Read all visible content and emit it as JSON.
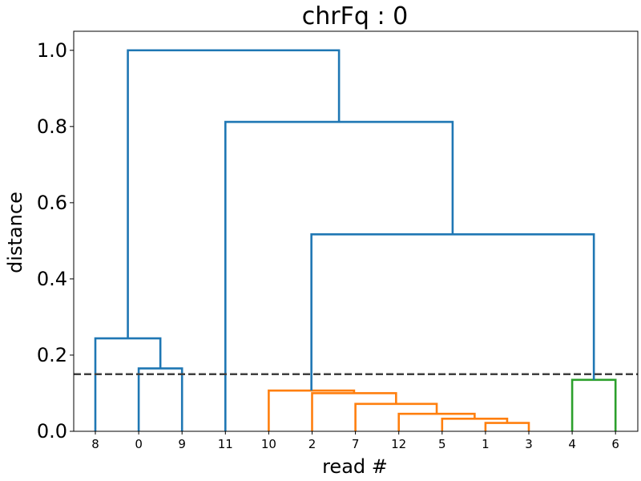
{
  "chart_data": {
    "type": "dendrogram",
    "title": "chrFq : 0",
    "xlabel": "read #",
    "ylabel": "distance",
    "ylim": [
      0,
      1.05
    ],
    "yticks": [
      "0.0",
      "0.2",
      "0.4",
      "0.6",
      "0.8",
      "1.0"
    ],
    "leaves": [
      "8",
      "0",
      "9",
      "11",
      "10",
      "2",
      "7",
      "12",
      "5",
      "1",
      "3",
      "4",
      "6"
    ],
    "threshold": 0.15,
    "threshold_color": "#404040",
    "colors": {
      "above": "#1f77b4",
      "cluster1": "#ff7f0e",
      "cluster2": "#2ca02c"
    },
    "links": [
      {
        "left": [
          5.5,
          0.0
        ],
        "right": [
          6.5,
          0.0
        ],
        "height": 0.022,
        "color": "#ff7f0e"
      },
      {
        "left": [
          4.5,
          0.0
        ],
        "right": [
          6.0,
          0.022
        ],
        "height": 0.033,
        "color": "#ff7f0e"
      },
      {
        "left": [
          3.5,
          0.0
        ],
        "right": [
          5.25,
          0.033
        ],
        "height": 0.046,
        "color": "#ff7f0e"
      },
      {
        "left": [
          2.5,
          0.0
        ],
        "right": [
          4.375,
          0.046
        ],
        "height": 0.072,
        "color": "#ff7f0e"
      },
      {
        "left": [
          1.5,
          0.0
        ],
        "right": [
          3.4375,
          0.072
        ],
        "height": 0.1,
        "color": "#ff7f0e"
      },
      {
        "left": [
          0.5,
          0.0
        ],
        "right": [
          2.46875,
          0.1
        ],
        "height": 0.107,
        "color": "#ff7f0e"
      },
      {
        "left": [
          7.5,
          0.0
        ],
        "right": [
          8.5,
          0.0
        ],
        "height": 0.135,
        "color": "#2ca02c"
      },
      {
        "left": [
          1.484375,
          0.107
        ],
        "right": [
          8.0,
          0.135
        ],
        "height": 0.517,
        "color": "#1f77b4"
      },
      {
        "left": [
          -0.5,
          0.0
        ],
        "right": [
          4.7421875,
          0.517
        ],
        "height": 0.812,
        "color": "#1f77b4"
      },
      {
        "left": [
          -2.5,
          0.0
        ],
        "right": [
          -1.5,
          0.0
        ],
        "height": 0.165,
        "color": "#1f77b4"
      },
      {
        "left": [
          -3.5,
          0.0
        ],
        "right": [
          -2.0,
          0.165
        ],
        "height": 0.244,
        "color": "#1f77b4"
      },
      {
        "left": [
          -2.75,
          0.244
        ],
        "right": [
          2.12109375,
          0.812
        ],
        "height": 1.0,
        "color": "#1f77b4"
      }
    ]
  }
}
